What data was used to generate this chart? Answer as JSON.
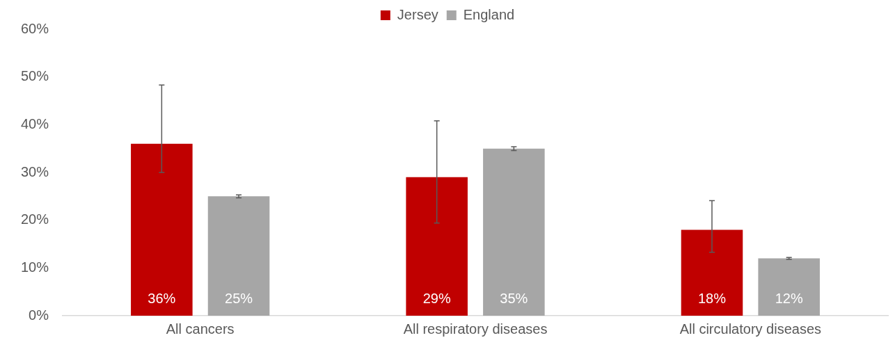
{
  "chart_data": {
    "type": "bar",
    "categories": [
      "All cancers",
      "All respiratory diseases",
      "All circulatory diseases"
    ],
    "series": [
      {
        "name": "Jersey",
        "color": "#c00000",
        "values": [
          36,
          29,
          18
        ],
        "errors": [
          [
            30,
            48.3
          ],
          [
            19.4,
            40.8
          ],
          [
            13.3,
            24.1
          ]
        ],
        "value_labels": [
          "36%",
          "29%",
          "18%"
        ]
      },
      {
        "name": "England",
        "color": "#a6a6a6",
        "values": [
          25,
          35,
          12
        ],
        "errors": [
          [
            24.7,
            25.3
          ],
          [
            34.6,
            35.4
          ],
          [
            11.8,
            12.2
          ]
        ],
        "value_labels": [
          "25%",
          "35%",
          "12%"
        ]
      }
    ],
    "ylim": [
      0,
      60
    ],
    "yticks": [
      {
        "value": 0,
        "label": "0%"
      },
      {
        "value": 10,
        "label": "10%"
      },
      {
        "value": 20,
        "label": "20%"
      },
      {
        "value": 30,
        "label": "30%"
      },
      {
        "value": 40,
        "label": "40%"
      },
      {
        "value": 50,
        "label": "50%"
      },
      {
        "value": 60,
        "label": "60%"
      }
    ],
    "grid": false,
    "legend": "top"
  }
}
